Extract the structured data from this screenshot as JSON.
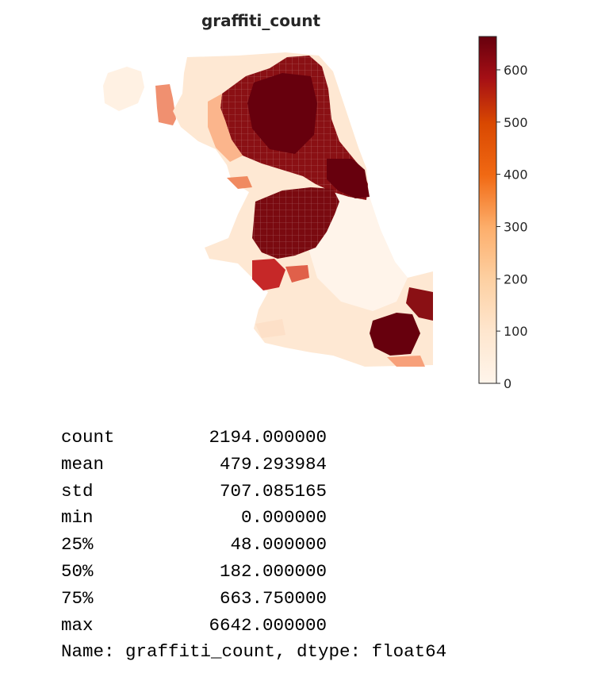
{
  "figure": {
    "title": "graffiti_count"
  },
  "colorbar": {
    "vmin": 0,
    "vmax": 663.75,
    "ticks": [
      {
        "value": 0,
        "label": "0"
      },
      {
        "value": 100,
        "label": "100"
      },
      {
        "value": 200,
        "label": "200"
      },
      {
        "value": 300,
        "label": "300"
      },
      {
        "value": 400,
        "label": "400"
      },
      {
        "value": 500,
        "label": "500"
      },
      {
        "value": 600,
        "label": "600"
      }
    ],
    "colormap": [
      "#fff5eb",
      "#fdd0a2",
      "#fdae6b",
      "#f16913",
      "#d94801",
      "#a50f15",
      "#67000d"
    ]
  },
  "stats": [
    {
      "key": "count",
      "value": "2194.000000"
    },
    {
      "key": "mean",
      "value": "479.293984"
    },
    {
      "key": "std",
      "value": "707.085165"
    },
    {
      "key": "min",
      "value": "0.000000"
    },
    {
      "key": "25%",
      "value": "48.000000"
    },
    {
      "key": "50%",
      "value": "182.000000"
    },
    {
      "key": "75%",
      "value": "663.750000"
    },
    {
      "key": "max",
      "value": "6642.000000"
    }
  ],
  "name_line": "Name: graffiti_count, dtype: float64"
}
